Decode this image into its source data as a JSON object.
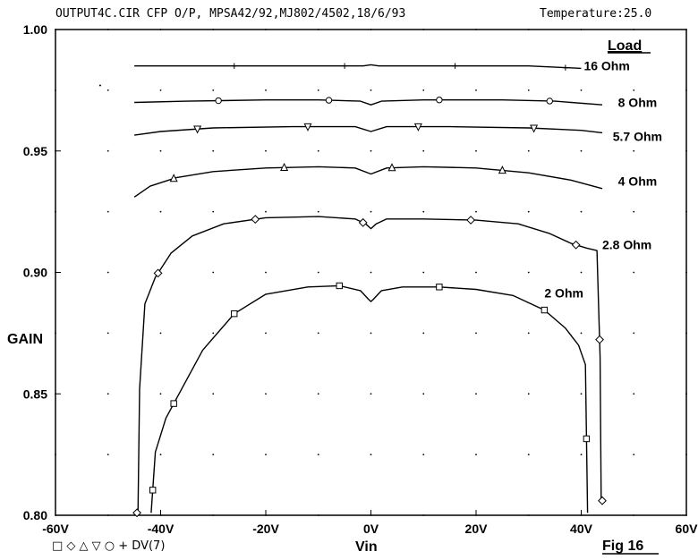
{
  "header": {
    "title": "OUTPUT4C.CIR  CFP O/P, MPSA42/92,MJ802/4502,18/6/93",
    "temperature": "Temperature:25.0"
  },
  "fig_label": "Fig 16",
  "legend_bottom": "□  ◇  △  ▽  ○  + DV(7)",
  "chart_data": {
    "type": "line",
    "title": "",
    "xlabel": "Vin",
    "ylabel": "GAIN",
    "xlim": [
      -60,
      60
    ],
    "ylim": [
      0.8,
      1.0
    ],
    "grid": "dotted",
    "legend_title": "Load",
    "xticks": [
      {
        "v": -60,
        "label": "-60V"
      },
      {
        "v": -40,
        "label": "-40V"
      },
      {
        "v": -20,
        "label": "-20V"
      },
      {
        "v": 0,
        "label": "0V"
      },
      {
        "v": 20,
        "label": "20V"
      },
      {
        "v": 40,
        "label": "40V"
      },
      {
        "v": 60,
        "label": "60V"
      }
    ],
    "yticks": [
      {
        "v": 0.8,
        "label": "0.80"
      },
      {
        "v": 0.85,
        "label": "0.85"
      },
      {
        "v": 0.9,
        "label": "0.90"
      },
      {
        "v": 0.95,
        "label": "0.95"
      },
      {
        "v": 1.0,
        "label": "1.00"
      }
    ],
    "series": [
      {
        "name": "16 Ohm",
        "marker": "plus",
        "label_at": [
          40.5,
          0.985
        ],
        "x": [
          -45,
          -30,
          -15,
          -1.5,
          0,
          1.5,
          15,
          30,
          40
        ],
        "y": [
          0.985,
          0.985,
          0.985,
          0.985,
          0.9855,
          0.985,
          0.985,
          0.985,
          0.984
        ],
        "markers_x": [
          -26,
          -5,
          16,
          37
        ]
      },
      {
        "name": "8 Ohm",
        "marker": "circle",
        "label_at": [
          47,
          0.97
        ],
        "x": [
          -45,
          -35,
          -20,
          -10,
          -2,
          0,
          2,
          10,
          25,
          35,
          44
        ],
        "y": [
          0.97,
          0.9705,
          0.971,
          0.971,
          0.9705,
          0.969,
          0.9705,
          0.971,
          0.971,
          0.9705,
          0.969
        ],
        "markers_x": [
          -29,
          -8,
          13,
          34
        ]
      },
      {
        "name": "5.7 Ohm",
        "marker": "triangle-down",
        "label_at": [
          46,
          0.956
        ],
        "x": [
          -45,
          -40,
          -30,
          -15,
          -3,
          0,
          3,
          15,
          30,
          40,
          44
        ],
        "y": [
          0.9565,
          0.958,
          0.9595,
          0.96,
          0.96,
          0.958,
          0.96,
          0.96,
          0.9595,
          0.9585,
          0.9575
        ],
        "markers_x": [
          -33,
          -12,
          9,
          31
        ]
      },
      {
        "name": "4 Ohm",
        "marker": "triangle-up",
        "label_at": [
          47,
          0.9375
        ],
        "x": [
          -45,
          -42,
          -37,
          -30,
          -20,
          -10,
          -3,
          0,
          3,
          10,
          20,
          30,
          38,
          44
        ],
        "y": [
          0.931,
          0.9355,
          0.939,
          0.9415,
          0.943,
          0.9435,
          0.943,
          0.9405,
          0.943,
          0.9435,
          0.943,
          0.941,
          0.938,
          0.9345
        ],
        "markers_x": [
          -37.5,
          -16.5,
          4,
          25
        ]
      },
      {
        "name": "2.8 Ohm",
        "marker": "diamond",
        "label_at": [
          44,
          0.9115
        ],
        "x": [
          -44.3,
          -44,
          -43,
          -41,
          -38,
          -34,
          -28,
          -20,
          -10,
          -3,
          -1,
          0,
          1,
          3,
          10,
          20,
          28,
          34,
          38,
          41,
          43,
          43.6,
          43.8
        ],
        "y": [
          0.801,
          0.852,
          0.887,
          0.898,
          0.908,
          0.915,
          0.92,
          0.9225,
          0.923,
          0.922,
          0.92,
          0.918,
          0.92,
          0.922,
          0.922,
          0.9215,
          0.92,
          0.916,
          0.912,
          0.91,
          0.909,
          0.865,
          0.806
        ],
        "markers_x": [
          -44.5,
          -40.5,
          -22,
          -1.5,
          19,
          39,
          43.5,
          44
        ]
      },
      {
        "name": "2 Ohm",
        "marker": "square",
        "label_at": [
          33,
          0.8915
        ],
        "x": [
          -41.8,
          -41,
          -39,
          -36,
          -32,
          -26,
          -20,
          -12,
          -6,
          -2,
          -0.5,
          0,
          0.5,
          2,
          6,
          13,
          20,
          27,
          33,
          37,
          39.5,
          40.8,
          41.2
        ],
        "y": [
          0.801,
          0.826,
          0.84,
          0.852,
          0.868,
          0.883,
          0.891,
          0.894,
          0.8945,
          0.8925,
          0.889,
          0.888,
          0.889,
          0.8925,
          0.894,
          0.894,
          0.893,
          0.8905,
          0.8845,
          0.877,
          0.87,
          0.862,
          0.801
        ],
        "markers_x": [
          -41.5,
          -37.5,
          -26,
          -6,
          13,
          33,
          41
        ]
      }
    ]
  }
}
